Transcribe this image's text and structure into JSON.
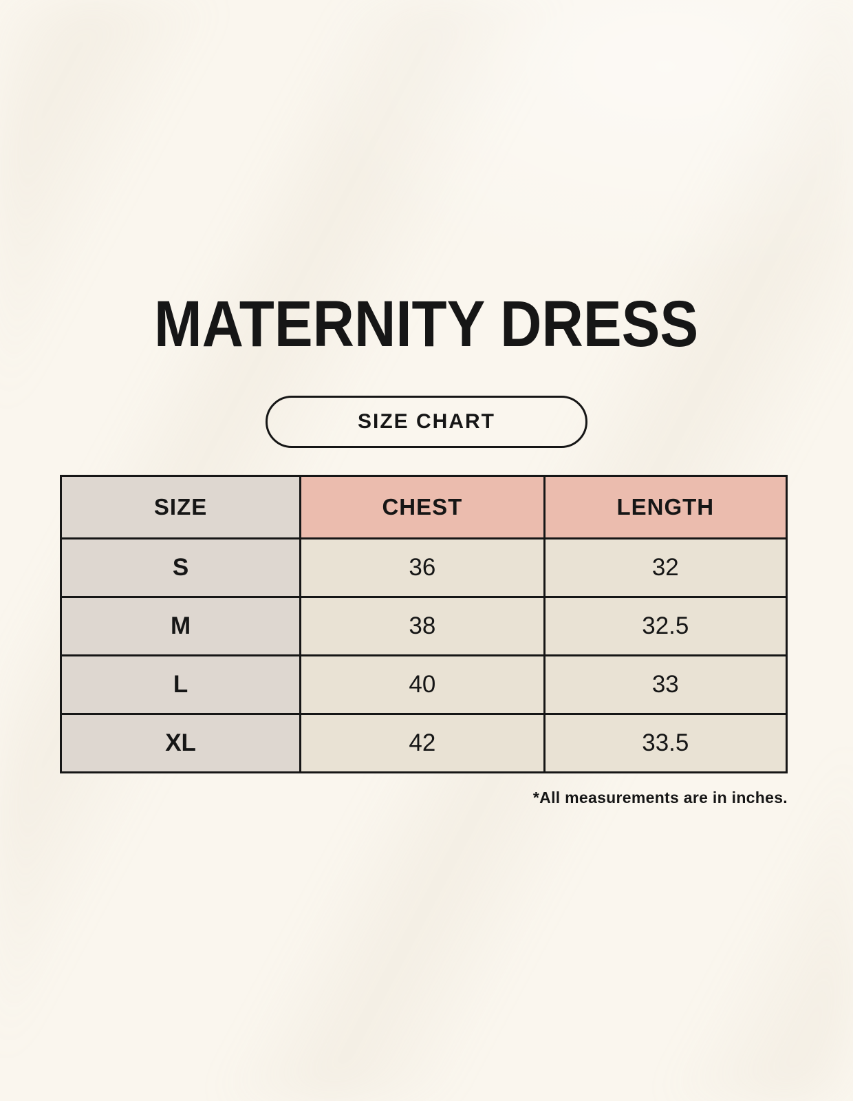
{
  "title": "MATERNITY DRESS",
  "button": {
    "label": "SIZE CHART"
  },
  "footnote": "*All measurements are in inches.",
  "colors": {
    "page_bg": "#faf6ee",
    "header_accent": "#ebbcae",
    "size_column_bg": "#ded7d0",
    "cell_bg": "#e9e2d4",
    "line": "#161616"
  },
  "chart_data": {
    "type": "table",
    "title": "MATERNITY DRESS size chart",
    "columns": [
      "SIZE",
      "CHEST",
      "LENGTH"
    ],
    "rows": [
      [
        "S",
        "36",
        "32"
      ],
      [
        "M",
        "38",
        "32.5"
      ],
      [
        "L",
        "40",
        "33"
      ],
      [
        "XL",
        "42",
        "33.5"
      ]
    ],
    "units": "inches"
  }
}
